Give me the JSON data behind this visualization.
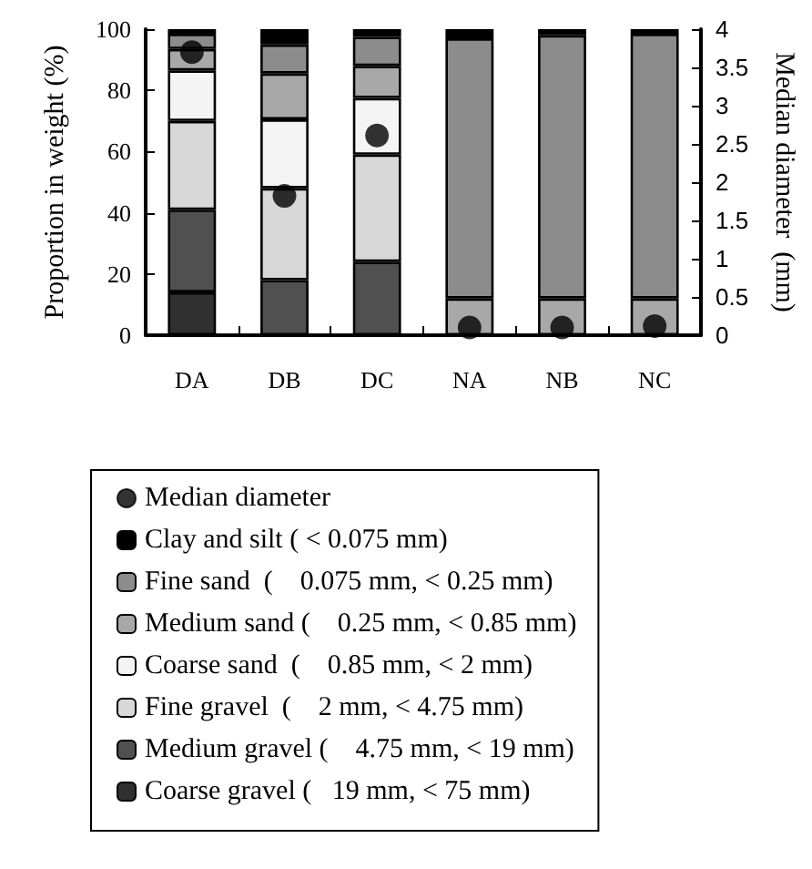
{
  "chart_data": {
    "type": "bar",
    "stacked": true,
    "ylabel": "Proportion in weight (%)",
    "y2label": "Median diameter  (mm)",
    "categories": [
      "DA",
      "DB",
      "DC",
      "NA",
      "NB",
      "NC"
    ],
    "ylim": [
      0,
      100
    ],
    "yticks": [
      0,
      20,
      40,
      60,
      80,
      100
    ],
    "y2lim": [
      0,
      4
    ],
    "y2ticks": [
      0,
      0.5,
      1,
      1.5,
      2,
      2.5,
      3,
      3.5,
      4
    ],
    "legend": "bottom",
    "grid": false,
    "series": [
      {
        "name": "Coarse gravel (   19 mm, < 75 mm)",
        "color": "#303030",
        "values": [
          14,
          0,
          0,
          0,
          0,
          0
        ]
      },
      {
        "name": "Medium gravel (    4.75 mm, < 19 mm)",
        "color": "#505050",
        "values": [
          27,
          18,
          24,
          0,
          0,
          0
        ]
      },
      {
        "name": "Fine gravel  (    2 mm, < 4.75 mm)",
        "color": "#d8d8d8",
        "values": [
          29,
          30,
          35,
          0,
          0,
          0
        ]
      },
      {
        "name": "Coarse sand  (    0.85 mm, < 2 mm)",
        "color": "#f4f4f4",
        "values": [
          16.5,
          22.5,
          18.5,
          0,
          0,
          0
        ]
      },
      {
        "name": "Medium sand (    0.25 mm, < 0.85 mm)",
        "color": "#a8a8a8",
        "values": [
          7,
          15,
          10.5,
          12,
          12,
          12
        ]
      },
      {
        "name": "Fine sand  (    0.075 mm, < 0.25 mm)",
        "color": "#8c8c8c",
        "values": [
          5,
          9.5,
          9.5,
          85,
          86,
          86.5
        ]
      },
      {
        "name": "Clay and silt ( < 0.075 mm)",
        "color": "#000000",
        "values": [
          1.5,
          5,
          2.5,
          3,
          2,
          1.5
        ]
      },
      {
        "name": "Median diameter",
        "type": "scatter",
        "axis": "y2",
        "marker": "circle",
        "color": "#000000",
        "values": [
          3.7,
          1.82,
          2.61,
          0.1,
          0.1,
          0.12
        ]
      }
    ]
  }
}
